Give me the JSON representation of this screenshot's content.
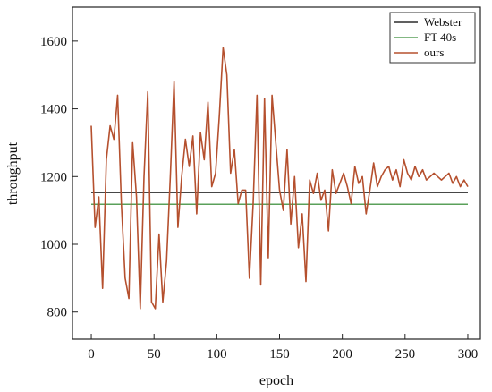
{
  "chart_data": {
    "type": "line",
    "xlabel": "epoch",
    "ylabel": "throughput",
    "xlim": [
      -15,
      310
    ],
    "ylim": [
      720,
      1700
    ],
    "xticks": [
      0,
      50,
      100,
      150,
      200,
      250,
      300
    ],
    "yticks": [
      800,
      1000,
      1200,
      1400,
      1600
    ],
    "grid": false,
    "legend_position": "top-right",
    "series": [
      {
        "name": "Webster",
        "color": "#2b2b2b",
        "x": [
          0,
          300
        ],
        "values": [
          1153,
          1153
        ]
      },
      {
        "name": "FT 40s",
        "color": "#5aa05a",
        "x": [
          0,
          300
        ],
        "values": [
          1118,
          1118
        ]
      },
      {
        "name": "ours",
        "color": "#b5502e",
        "x": [
          0,
          3,
          6,
          9,
          12,
          15,
          18,
          21,
          24,
          27,
          30,
          33,
          36,
          39,
          42,
          45,
          48,
          51,
          54,
          57,
          60,
          63,
          66,
          69,
          72,
          75,
          78,
          81,
          84,
          87,
          90,
          93,
          96,
          99,
          102,
          105,
          108,
          111,
          114,
          117,
          120,
          123,
          126,
          129,
          132,
          135,
          138,
          141,
          144,
          147,
          150,
          153,
          156,
          159,
          162,
          165,
          168,
          171,
          174,
          177,
          180,
          183,
          186,
          189,
          192,
          195,
          198,
          201,
          204,
          207,
          210,
          213,
          216,
          219,
          222,
          225,
          228,
          231,
          234,
          237,
          240,
          243,
          246,
          249,
          252,
          255,
          258,
          261,
          264,
          267,
          270,
          273,
          276,
          279,
          282,
          285,
          288,
          291,
          294,
          297,
          300
        ],
        "values": [
          1350,
          1050,
          1140,
          870,
          1250,
          1350,
          1310,
          1440,
          1120,
          900,
          840,
          1300,
          1140,
          810,
          1200,
          1450,
          830,
          810,
          1030,
          830,
          950,
          1200,
          1480,
          1050,
          1200,
          1310,
          1230,
          1320,
          1090,
          1330,
          1250,
          1420,
          1170,
          1210,
          1380,
          1580,
          1500,
          1210,
          1280,
          1120,
          1160,
          1160,
          900,
          1120,
          1440,
          880,
          1430,
          960,
          1440,
          1300,
          1160,
          1100,
          1280,
          1060,
          1200,
          990,
          1090,
          890,
          1190,
          1150,
          1210,
          1130,
          1160,
          1040,
          1220,
          1150,
          1180,
          1210,
          1170,
          1120,
          1230,
          1180,
          1200,
          1090,
          1160,
          1240,
          1170,
          1200,
          1220,
          1230,
          1190,
          1220,
          1170,
          1250,
          1210,
          1190,
          1230,
          1200,
          1220,
          1190,
          1200,
          1210,
          1200,
          1190,
          1200,
          1210,
          1180,
          1200,
          1170,
          1190,
          1170
        ]
      }
    ]
  }
}
